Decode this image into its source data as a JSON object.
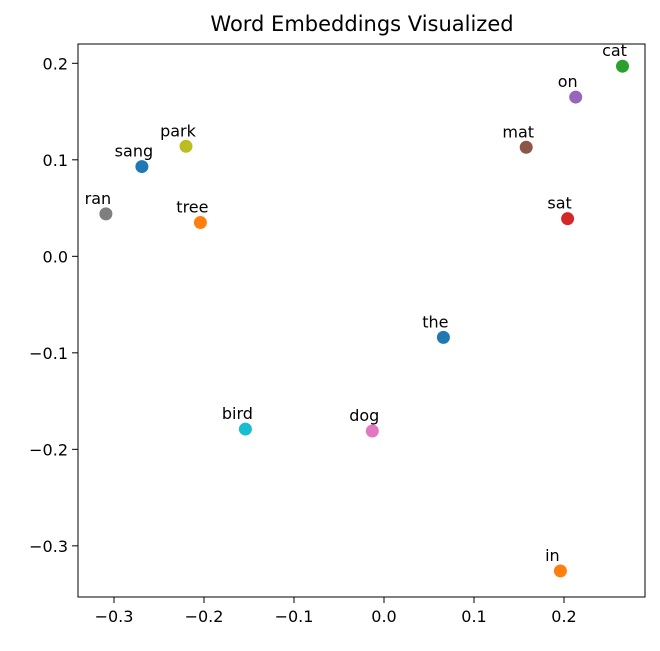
{
  "chart_data": {
    "type": "scatter",
    "title": "Word Embeddings Visualized",
    "xlabel": "",
    "ylabel": "",
    "xlim": [
      -0.34,
      0.29
    ],
    "ylim": [
      -0.353,
      0.22
    ],
    "grid": false,
    "x_ticks": [
      {
        "value": -0.3,
        "label": "−0.3"
      },
      {
        "value": -0.2,
        "label": "−0.2"
      },
      {
        "value": -0.1,
        "label": "−0.1"
      },
      {
        "value": 0.0,
        "label": "0.0"
      },
      {
        "value": 0.1,
        "label": "0.1"
      },
      {
        "value": 0.2,
        "label": "0.2"
      }
    ],
    "y_ticks": [
      {
        "value": 0.2,
        "label": "0.2"
      },
      {
        "value": 0.1,
        "label": "0.1"
      },
      {
        "value": 0.0,
        "label": "0.0"
      },
      {
        "value": -0.1,
        "label": "−0.1"
      },
      {
        "value": -0.2,
        "label": "−0.2"
      },
      {
        "value": -0.3,
        "label": "−0.3"
      }
    ],
    "points": [
      {
        "label": "the",
        "x": 0.066,
        "y": -0.084,
        "color": "#1f77b4"
      },
      {
        "label": "cat",
        "x": 0.265,
        "y": 0.197,
        "color": "#2ca02c"
      },
      {
        "label": "sat",
        "x": 0.204,
        "y": 0.039,
        "color": "#d62728"
      },
      {
        "label": "on",
        "x": 0.213,
        "y": 0.165,
        "color": "#9467bd"
      },
      {
        "label": "mat",
        "x": 0.158,
        "y": 0.113,
        "color": "#8c564b"
      },
      {
        "label": "dog",
        "x": -0.013,
        "y": -0.181,
        "color": "#e377c2"
      },
      {
        "label": "ran",
        "x": -0.309,
        "y": 0.044,
        "color": "#7f7f7f"
      },
      {
        "label": "in",
        "x": 0.196,
        "y": -0.326,
        "color": "#ff7f0e"
      },
      {
        "label": "park",
        "x": -0.22,
        "y": 0.114,
        "color": "#bcbd22"
      },
      {
        "label": "bird",
        "x": -0.154,
        "y": -0.179,
        "color": "#17becf"
      },
      {
        "label": "sang",
        "x": -0.269,
        "y": 0.093,
        "color": "#1f77b4"
      },
      {
        "label": "tree",
        "x": -0.204,
        "y": 0.035,
        "color": "#ff7f0e"
      }
    ]
  }
}
